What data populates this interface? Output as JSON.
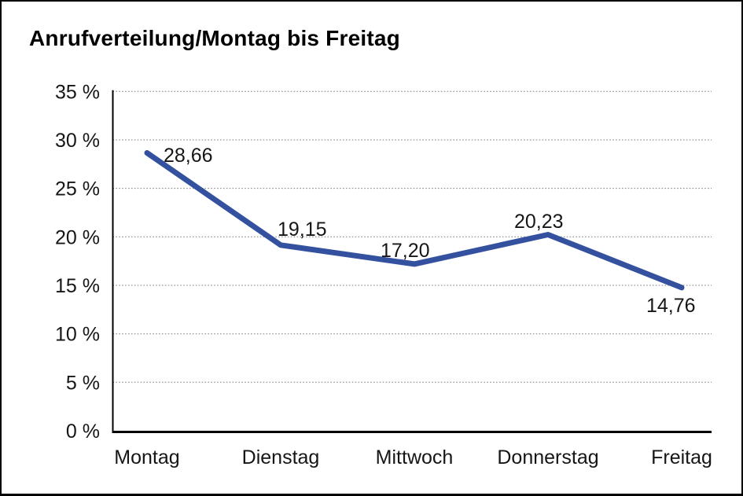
{
  "chart_data": {
    "type": "line",
    "title": "Anrufverteilung/Montag bis Freitag",
    "categories": [
      "Montag",
      "Dienstag",
      "Mittwoch",
      "Donnerstag",
      "Freitag"
    ],
    "values": [
      28.66,
      19.15,
      17.2,
      20.23,
      14.76
    ],
    "data_labels": [
      "28,66",
      "19,15",
      "17,20",
      "20,23",
      "14,76"
    ],
    "y_tick_labels": [
      "35 %",
      "30 %",
      "25 %",
      "20 %",
      "15 %",
      "10 %",
      "5 %",
      "0 %"
    ],
    "ylim": [
      0,
      35
    ],
    "y_step": 5,
    "xlabel": "",
    "ylabel": "",
    "grid": "horizontal-dotted",
    "legend": "none",
    "line_color": "#33519E",
    "grid_color": "#7d7d7d",
    "axis_color": "#000000",
    "text_color": "#161616"
  }
}
